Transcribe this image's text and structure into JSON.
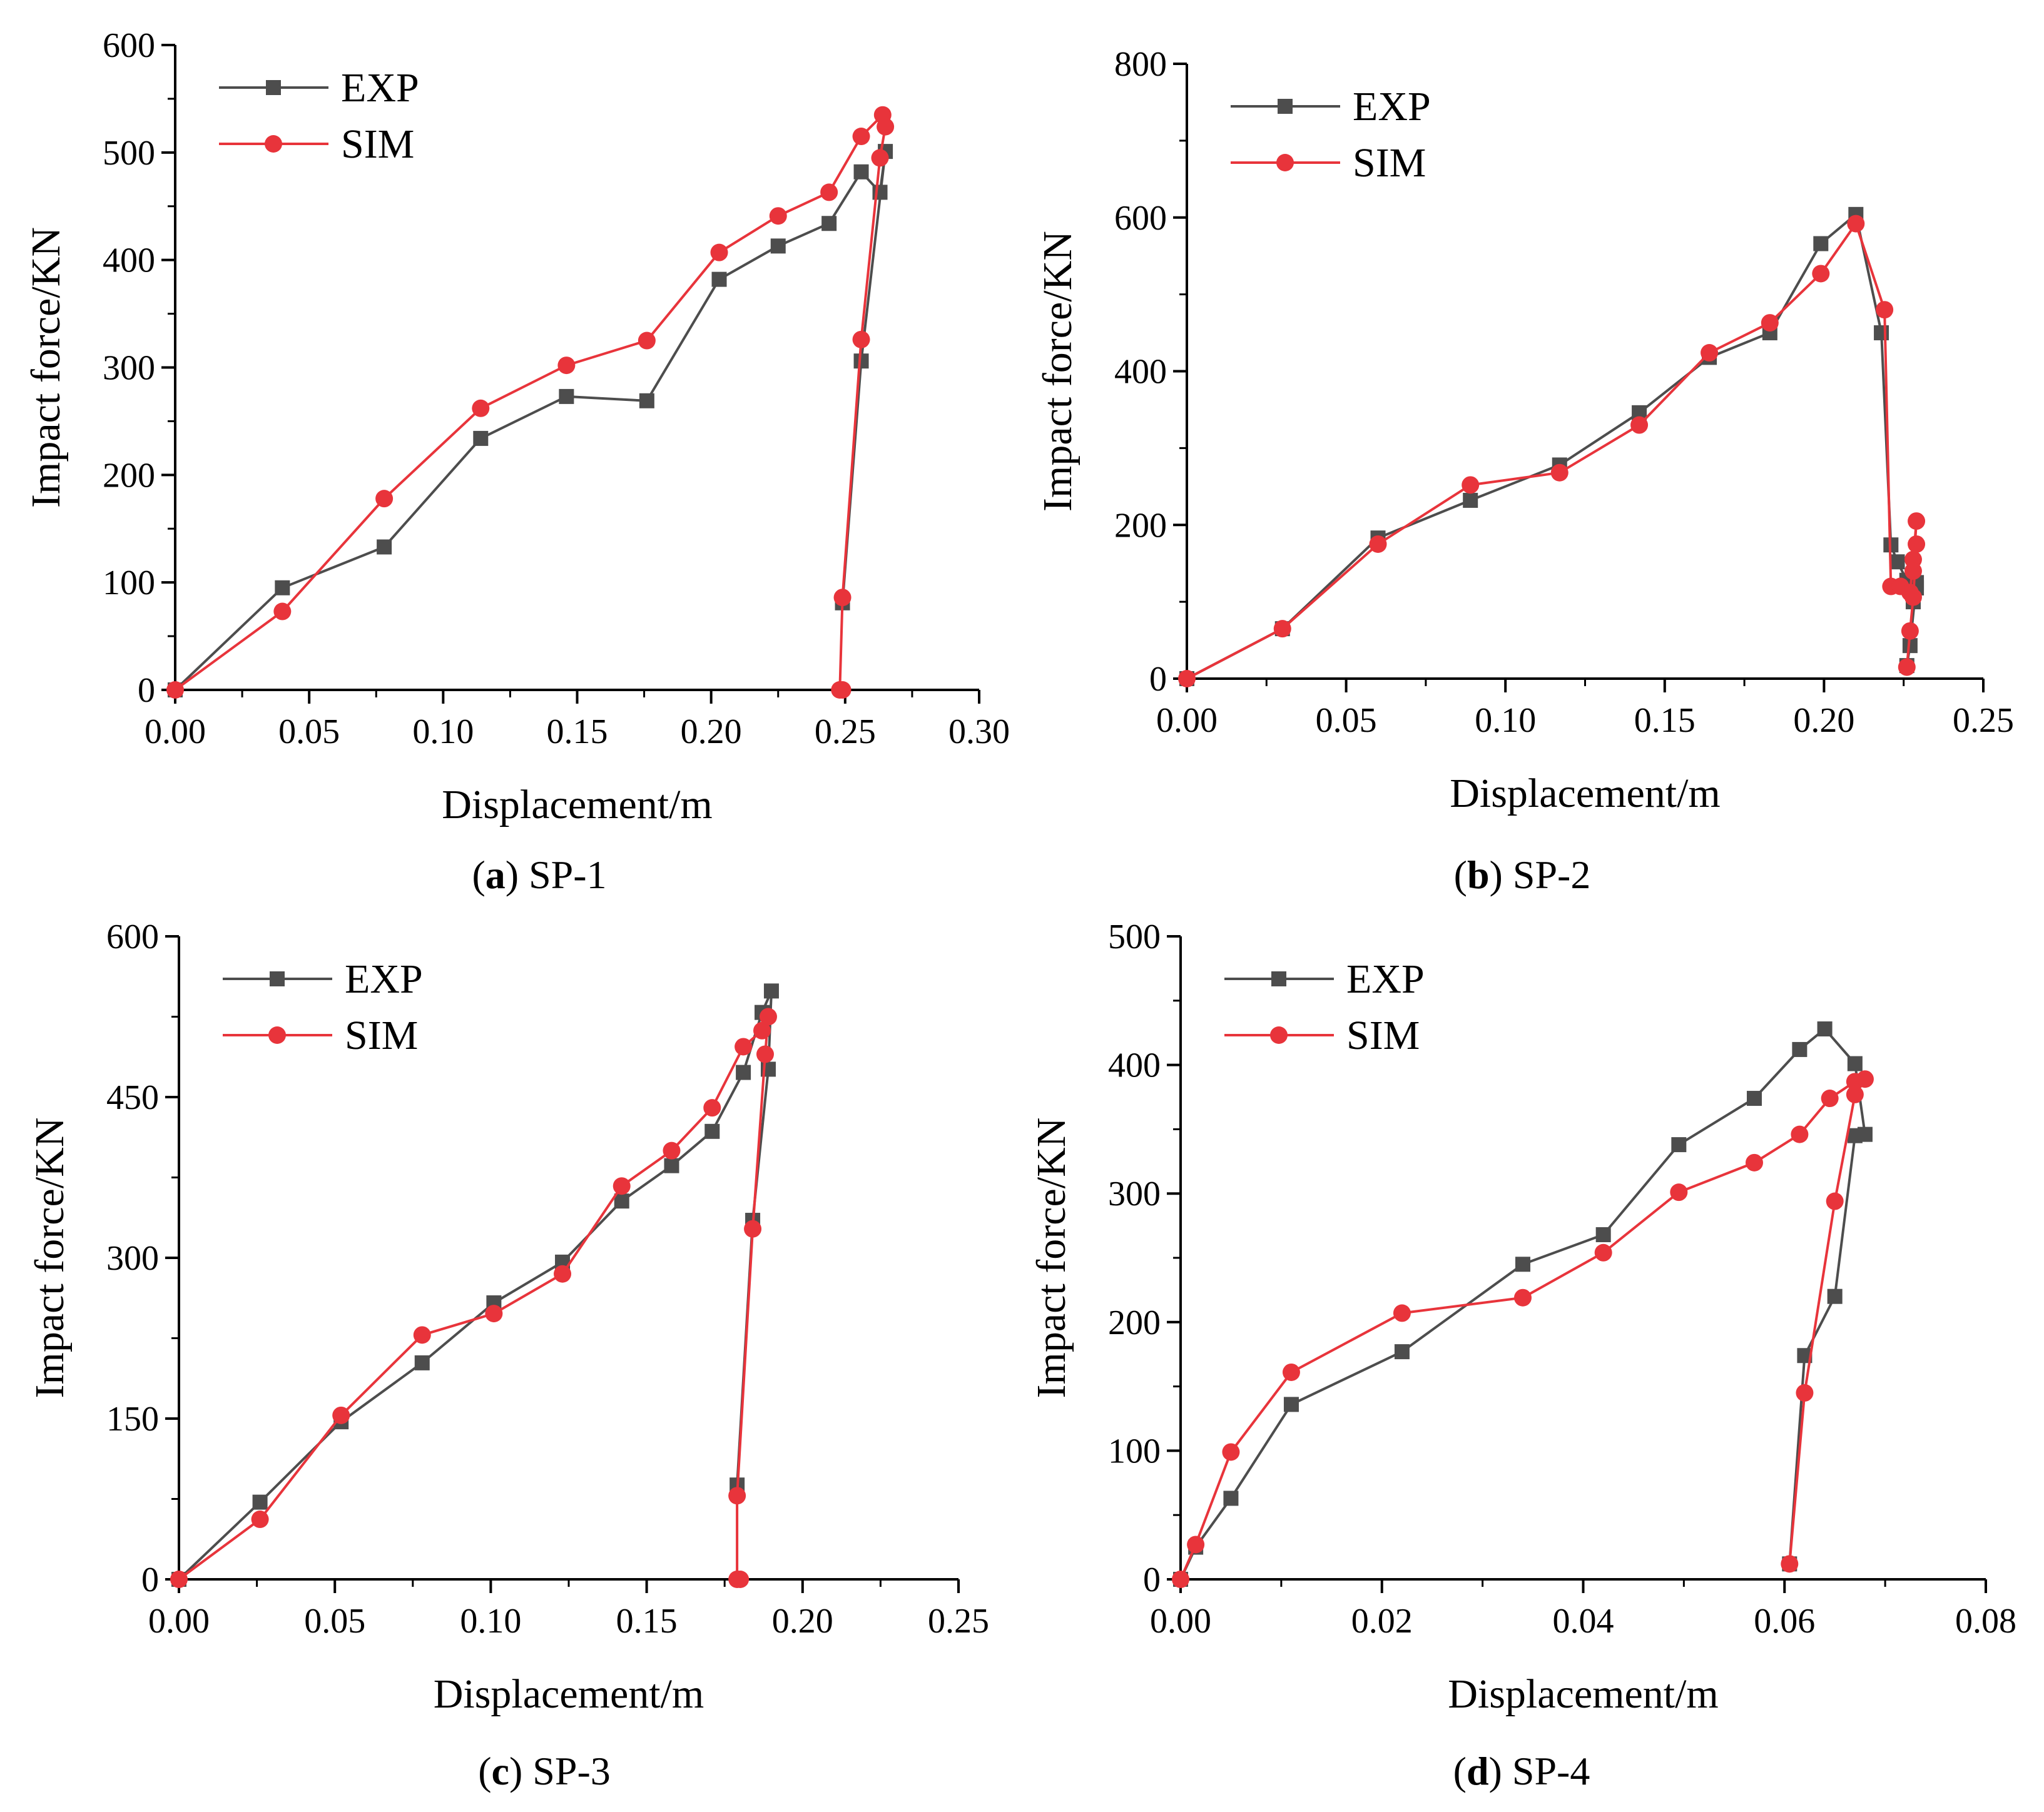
{
  "colors": {
    "exp": "#4d4d4d",
    "sim": "#e8343b",
    "axis": "#000000"
  },
  "chart_data": [
    {
      "id": "a",
      "type": "line",
      "caption_letter": "a",
      "caption_name": "SP-1",
      "xlabel": "Displacement/m",
      "ylabel": "Impact force/KN",
      "xlim": [
        0,
        0.3
      ],
      "ylim": [
        0,
        600
      ],
      "xticks": [
        0,
        0.05,
        0.1,
        0.15,
        0.2,
        0.25,
        0.3
      ],
      "xtick_labels": [
        "0.00",
        "0.05",
        "0.10",
        "0.15",
        "0.20",
        "0.25",
        "0.30"
      ],
      "yticks": [
        0,
        100,
        200,
        300,
        400,
        500,
        600
      ],
      "ytick_labels": [
        "0",
        "100",
        "200",
        "300",
        "400",
        "500",
        "600"
      ],
      "legend": [
        "EXP",
        "SIM"
      ],
      "legend_position": "top-left",
      "series": [
        {
          "name": "EXP",
          "marker": "square",
          "x": [
            0,
            0.04,
            0.078,
            0.114,
            0.146,
            0.176,
            0.203,
            0.225,
            0.244,
            0.256,
            0.263,
            0.265,
            0.256,
            0.249
          ],
          "y": [
            0,
            95,
            133,
            234,
            273,
            269,
            382,
            413,
            434,
            482,
            463,
            501,
            306,
            81
          ]
        },
        {
          "name": "SIM",
          "marker": "circle",
          "x": [
            0,
            0.04,
            0.078,
            0.114,
            0.146,
            0.176,
            0.203,
            0.225,
            0.244,
            0.256,
            0.264,
            0.265,
            0.263,
            0.256,
            0.249,
            0.248,
            0.249
          ],
          "y": [
            0,
            73,
            178,
            262,
            302,
            325,
            407,
            441,
            463,
            515,
            535,
            524,
            495,
            326,
            86,
            0,
            0
          ]
        }
      ]
    },
    {
      "id": "b",
      "type": "line",
      "caption_letter": "b",
      "caption_name": "SP-2",
      "xlabel": "Displacement/m",
      "ylabel": "Impact force/KN",
      "xlim": [
        0,
        0.25
      ],
      "ylim": [
        0,
        800
      ],
      "xticks": [
        0,
        0.05,
        0.1,
        0.15,
        0.2,
        0.25
      ],
      "xtick_labels": [
        "0.00",
        "0.05",
        "0.10",
        "0.15",
        "0.20",
        "0.25"
      ],
      "yticks": [
        0,
        200,
        400,
        600,
        800
      ],
      "ytick_labels": [
        "0",
        "200",
        "400",
        "600",
        "800"
      ],
      "legend": [
        "EXP",
        "SIM"
      ],
      "legend_position": "top-left",
      "series": [
        {
          "name": "EXP",
          "marker": "square",
          "x": [
            0,
            0.03,
            0.06,
            0.089,
            0.117,
            0.142,
            0.164,
            0.183,
            0.199,
            0.21,
            0.218,
            0.221,
            0.223,
            0.226,
            0.228,
            0.229,
            0.229,
            0.227,
            0.226
          ],
          "y": [
            0,
            65,
            183,
            232,
            278,
            346,
            418,
            450,
            566,
            604,
            450,
            174,
            152,
            128,
            100,
            118,
            125,
            43,
            17
          ]
        },
        {
          "name": "SIM",
          "marker": "circle",
          "x": [
            0,
            0.03,
            0.06,
            0.089,
            0.117,
            0.142,
            0.164,
            0.183,
            0.199,
            0.21,
            0.219,
            0.221,
            0.224,
            0.227,
            0.228,
            0.229,
            0.228,
            0.229,
            0.228,
            0.227,
            0.226
          ],
          "y": [
            0,
            65,
            175,
            252,
            268,
            330,
            424,
            463,
            527,
            592,
            480,
            120,
            120,
            112,
            155,
            205,
            140,
            175,
            106,
            62,
            15
          ]
        }
      ]
    },
    {
      "id": "c",
      "type": "line",
      "caption_letter": "c",
      "caption_name": "SP-3",
      "xlabel": "Displacement/m",
      "ylabel": "Impact force/KN",
      "xlim": [
        0,
        0.25
      ],
      "ylim": [
        0,
        600
      ],
      "xticks": [
        0,
        0.05,
        0.1,
        0.15,
        0.2,
        0.25
      ],
      "xtick_labels": [
        "0.00",
        "0.05",
        "0.10",
        "0.15",
        "0.20",
        "0.25"
      ],
      "yticks": [
        0,
        150,
        300,
        450,
        600
      ],
      "ytick_labels": [
        "0",
        "150",
        "300",
        "450",
        "600"
      ],
      "legend": [
        "EXP",
        "SIM"
      ],
      "legend_position": "top-left",
      "series": [
        {
          "name": "EXP",
          "marker": "square",
          "x": [
            0,
            0.026,
            0.052,
            0.078,
            0.101,
            0.123,
            0.142,
            0.158,
            0.171,
            0.181,
            0.187,
            0.19,
            0.189,
            0.184,
            0.179
          ],
          "y": [
            0,
            72,
            147,
            202,
            258,
            296,
            353,
            386,
            418,
            473,
            529,
            549,
            476,
            335,
            88
          ]
        },
        {
          "name": "SIM",
          "marker": "circle",
          "x": [
            0,
            0.026,
            0.052,
            0.078,
            0.101,
            0.123,
            0.142,
            0.158,
            0.171,
            0.181,
            0.187,
            0.189,
            0.188,
            0.184,
            0.179,
            0.179,
            0.18
          ],
          "y": [
            0,
            56,
            153,
            228,
            248,
            285,
            367,
            400,
            440,
            497,
            512,
            525,
            490,
            327,
            78,
            0,
            0
          ]
        }
      ]
    },
    {
      "id": "d",
      "type": "line",
      "caption_letter": "d",
      "caption_name": "SP-4",
      "xlabel": "Displacement/m",
      "ylabel": "Impact force/KN",
      "xlim": [
        0,
        0.08
      ],
      "ylim": [
        0,
        500
      ],
      "xticks": [
        0,
        0.02,
        0.04,
        0.06,
        0.08
      ],
      "xtick_labels": [
        "0.00",
        "0.02",
        "0.04",
        "0.06",
        "0.08"
      ],
      "yticks": [
        0,
        100,
        200,
        300,
        400,
        500
      ],
      "ytick_labels": [
        "0",
        "100",
        "200",
        "300",
        "400",
        "500"
      ],
      "legend": [
        "EXP",
        "SIM"
      ],
      "legend_position": "top-left",
      "series": [
        {
          "name": "EXP",
          "marker": "square",
          "x": [
            0,
            0.0015,
            0.005,
            0.011,
            0.022,
            0.034,
            0.042,
            0.0495,
            0.057,
            0.0615,
            0.064,
            0.067,
            0.068,
            0.067,
            0.065,
            0.062,
            0.0605
          ],
          "y": [
            0,
            25,
            63,
            136,
            177,
            245,
            268,
            338,
            374,
            412,
            428,
            401,
            346,
            345,
            220,
            174,
            12
          ]
        },
        {
          "name": "SIM",
          "marker": "circle",
          "x": [
            0,
            0.0015,
            0.005,
            0.011,
            0.022,
            0.034,
            0.042,
            0.0495,
            0.057,
            0.0615,
            0.0645,
            0.067,
            0.068,
            0.067,
            0.065,
            0.062,
            0.0605
          ],
          "y": [
            0,
            27,
            99,
            161,
            207,
            219,
            254,
            301,
            324,
            346,
            374,
            387,
            389,
            377,
            294,
            145,
            12
          ]
        }
      ]
    }
  ]
}
